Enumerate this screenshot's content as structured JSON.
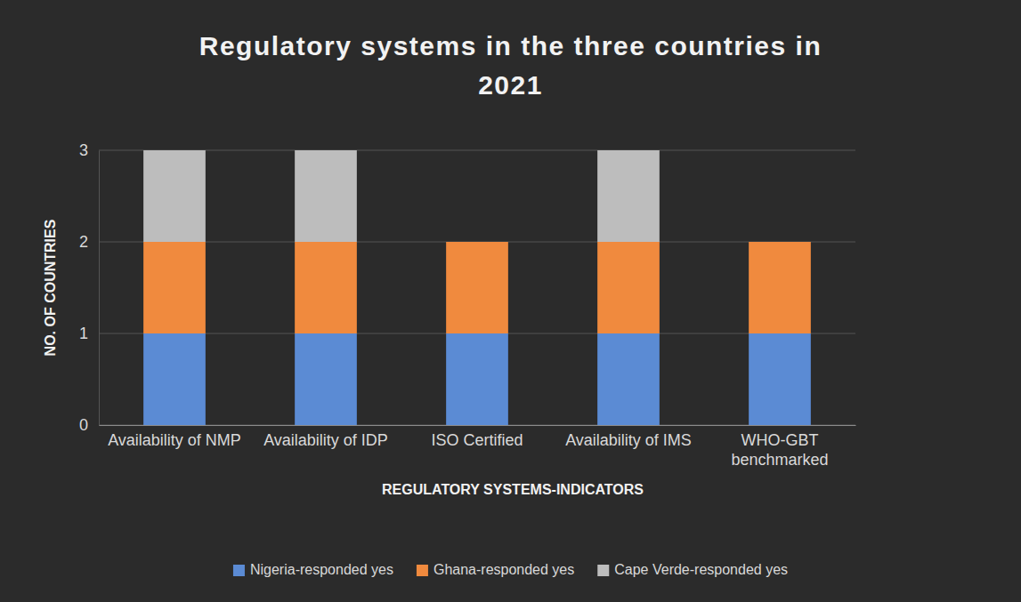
{
  "chart_data": {
    "type": "bar",
    "stacked": true,
    "title": "Regulatory systems in the three countries in 2021",
    "x_label": "REGULATORY SYSTEMS-INDICATORS",
    "y_label": "NO. OF COUNTRIES",
    "categories": [
      "Availability of NMP",
      "Availability of IDP",
      "ISO Certified",
      "Availability of IMS",
      "WHO-GBT benchmarked"
    ],
    "series": [
      {
        "name": "Nigeria-responded yes",
        "color": "#5b8bd4",
        "values": [
          1,
          1,
          1,
          1,
          1
        ]
      },
      {
        "name": "Ghana-responded yes",
        "color": "#f08a3e",
        "values": [
          1,
          1,
          1,
          1,
          1
        ]
      },
      {
        "name": "Cape Verde-responded yes",
        "color": "#bdbdbd",
        "values": [
          1,
          1,
          0,
          1,
          0
        ]
      }
    ],
    "ylim": [
      0,
      3
    ],
    "yticks": [
      0,
      1,
      2,
      3
    ],
    "grid": true,
    "legend": "bottom"
  }
}
